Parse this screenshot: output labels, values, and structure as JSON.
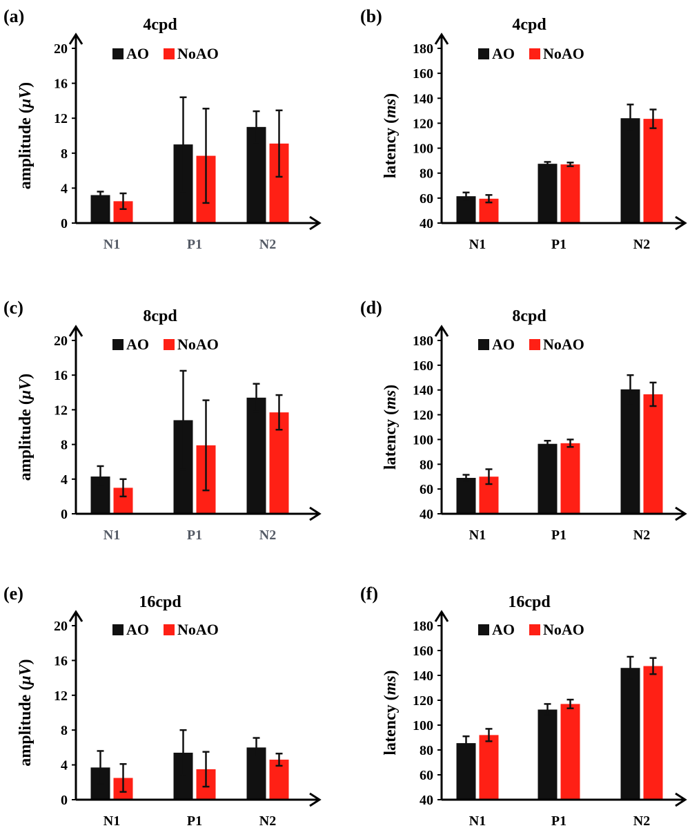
{
  "colors": {
    "ao": "#111111",
    "noao": "#ff2015",
    "axis": "#000000",
    "cat_gray": "#555b66",
    "cat_black": "#000000"
  },
  "chart_data": [
    {
      "id": "a",
      "panel_label": "(a)",
      "title": "4cpd",
      "type": "bar",
      "ylabel_main": "amplitude (",
      "ylabel_unit": "μV",
      "ylabel_close": ")",
      "ylim": [
        0,
        20
      ],
      "yticks": [
        "0",
        "4",
        "8",
        "12",
        "16",
        "20"
      ],
      "ytick_values": [
        0,
        4,
        8,
        12,
        16,
        20
      ],
      "categories": [
        "N1",
        "P1",
        "N2"
      ],
      "category_color": "cat_gray",
      "series": [
        {
          "name": "AO",
          "color": "ao",
          "values": [
            3.2,
            9.0,
            11.0
          ],
          "errors": [
            0.4,
            5.4,
            1.8
          ]
        },
        {
          "name": "NoAO",
          "color": "noao",
          "values": [
            2.5,
            7.7,
            9.1
          ],
          "errors": [
            0.9,
            5.4,
            3.8
          ]
        }
      ]
    },
    {
      "id": "b",
      "panel_label": "(b)",
      "title": "4cpd",
      "type": "bar",
      "ylabel_main": "latency (",
      "ylabel_unit": "ms",
      "ylabel_close": ")",
      "ylim": [
        40,
        180
      ],
      "yticks": [
        "40",
        "60",
        "80",
        "100",
        "120",
        "140",
        "160",
        "180"
      ],
      "ytick_values": [
        40,
        60,
        80,
        100,
        120,
        140,
        160,
        180
      ],
      "categories": [
        "N1",
        "P1",
        "N2"
      ],
      "category_color": "cat_black",
      "series": [
        {
          "name": "AO",
          "color": "ao",
          "values": [
            61.5,
            87.5,
            124.0
          ],
          "errors": [
            3.0,
            1.5,
            11.0
          ]
        },
        {
          "name": "NoAO",
          "color": "noao",
          "values": [
            59.5,
            87.0,
            123.5
          ],
          "errors": [
            3.0,
            1.5,
            7.5
          ]
        }
      ]
    },
    {
      "id": "c",
      "panel_label": "(c)",
      "title": "8cpd",
      "type": "bar",
      "ylabel_main": "amplitude (",
      "ylabel_unit": "μV",
      "ylabel_close": ")",
      "ylim": [
        0,
        20
      ],
      "yticks": [
        "0",
        "4",
        "8",
        "12",
        "16",
        "20"
      ],
      "ytick_values": [
        0,
        4,
        8,
        12,
        16,
        20
      ],
      "categories": [
        "N1",
        "P1",
        "N2"
      ],
      "category_color": "cat_gray",
      "series": [
        {
          "name": "AO",
          "color": "ao",
          "values": [
            4.3,
            10.8,
            13.4
          ],
          "errors": [
            1.2,
            5.7,
            1.6
          ]
        },
        {
          "name": "NoAO",
          "color": "noao",
          "values": [
            3.0,
            7.9,
            11.7
          ],
          "errors": [
            1.0,
            5.2,
            2.0
          ]
        }
      ]
    },
    {
      "id": "d",
      "panel_label": "(d)",
      "title": "8cpd",
      "type": "bar",
      "ylabel_main": "latency (",
      "ylabel_unit": "ms",
      "ylabel_close": ")",
      "ylim": [
        40,
        180
      ],
      "yticks": [
        "40",
        "60",
        "80",
        "100",
        "120",
        "140",
        "160",
        "180"
      ],
      "ytick_values": [
        40,
        60,
        80,
        100,
        120,
        140,
        160,
        180
      ],
      "categories": [
        "N1",
        "P1",
        "N2"
      ],
      "category_color": "cat_black",
      "series": [
        {
          "name": "AO",
          "color": "ao",
          "values": [
            69.0,
            96.5,
            140.5
          ],
          "errors": [
            2.5,
            2.5,
            11.5
          ]
        },
        {
          "name": "NoAO",
          "color": "noao",
          "values": [
            70.0,
            97.0,
            136.5
          ],
          "errors": [
            6.0,
            3.0,
            9.5
          ]
        }
      ]
    },
    {
      "id": "e",
      "panel_label": "(e)",
      "title": "16cpd",
      "type": "bar",
      "ylabel_main": "amplitude (",
      "ylabel_unit": "μV",
      "ylabel_close": ")",
      "ylim": [
        0,
        20
      ],
      "yticks": [
        "0",
        "4",
        "8",
        "12",
        "16",
        "20"
      ],
      "ytick_values": [
        0,
        4,
        8,
        12,
        16,
        20
      ],
      "categories": [
        "N1",
        "P1",
        "N2"
      ],
      "category_color": "cat_black",
      "series": [
        {
          "name": "AO",
          "color": "ao",
          "values": [
            3.7,
            5.4,
            6.0
          ],
          "errors": [
            1.9,
            2.6,
            1.1
          ]
        },
        {
          "name": "NoAO",
          "color": "noao",
          "values": [
            2.5,
            3.5,
            4.6
          ],
          "errors": [
            1.6,
            2.0,
            0.7
          ]
        }
      ]
    },
    {
      "id": "f",
      "panel_label": "(f)",
      "title": "16cpd",
      "type": "bar",
      "ylabel_main": "latency (",
      "ylabel_unit": "ms",
      "ylabel_close": ")",
      "ylim": [
        40,
        180
      ],
      "yticks": [
        "40",
        "60",
        "80",
        "100",
        "120",
        "140",
        "160",
        "180"
      ],
      "ytick_values": [
        40,
        60,
        80,
        100,
        120,
        140,
        160,
        180
      ],
      "categories": [
        "N1",
        "P1",
        "N2"
      ],
      "category_color": "cat_black",
      "series": [
        {
          "name": "AO",
          "color": "ao",
          "values": [
            85.5,
            112.5,
            146.0
          ],
          "errors": [
            5.5,
            4.5,
            9.0
          ]
        },
        {
          "name": "NoAO",
          "color": "noao",
          "values": [
            92.0,
            117.0,
            147.5
          ],
          "errors": [
            5.0,
            3.5,
            6.5
          ]
        }
      ]
    }
  ]
}
